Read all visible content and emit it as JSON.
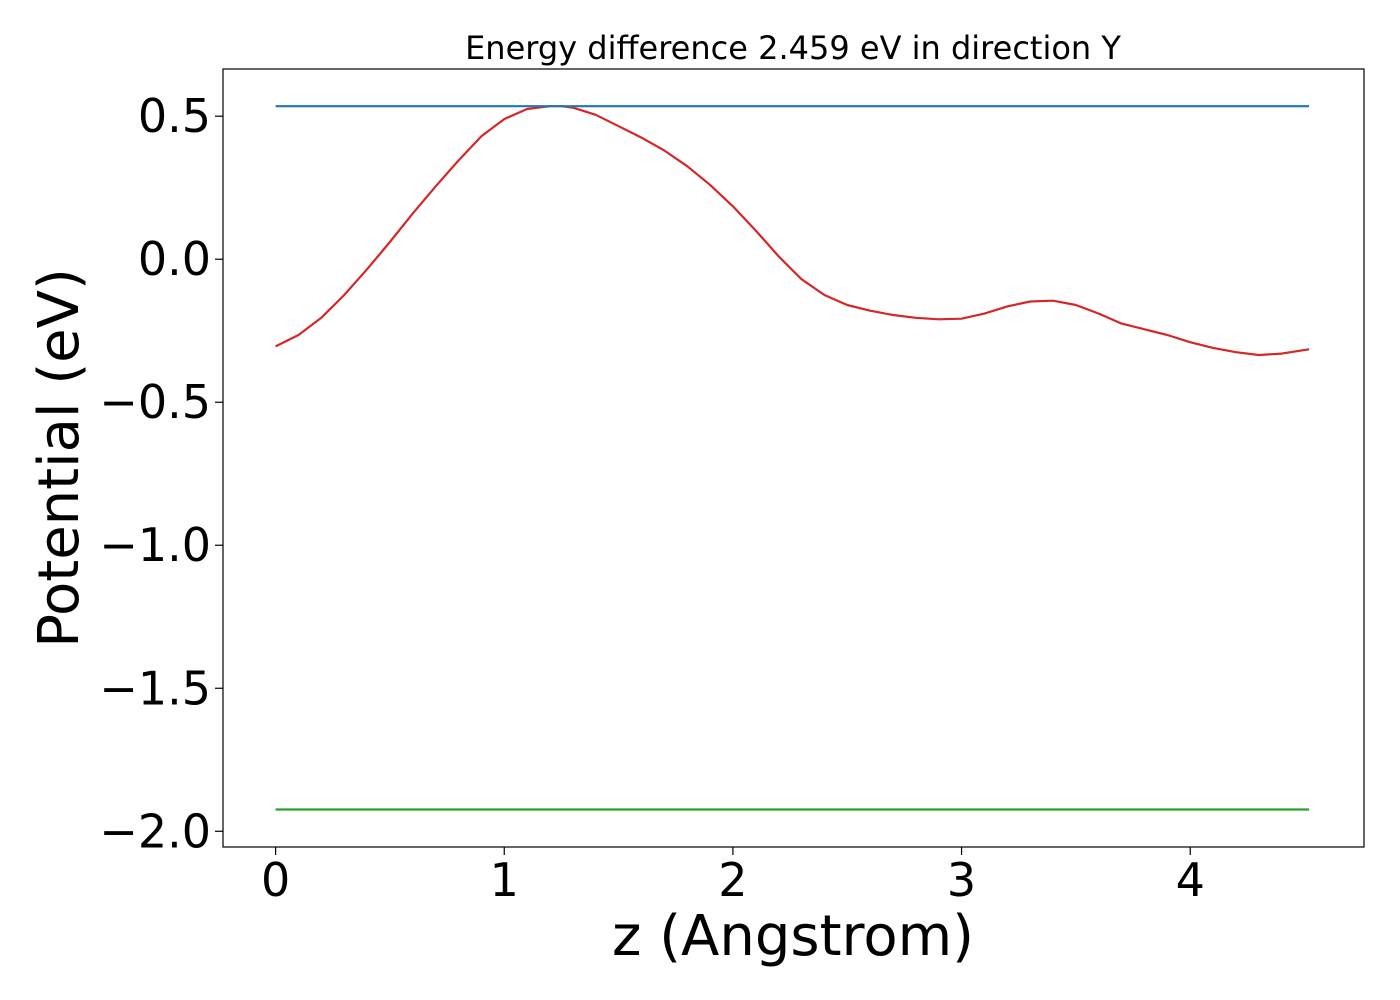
{
  "chart_data": {
    "type": "line",
    "title": "Energy difference 2.459 eV in direction Y",
    "xlabel": "z (Angstrom)",
    "ylabel": "Potential (eV)",
    "xlim": [
      -0.23,
      4.76
    ],
    "ylim": [
      -2.055,
      0.665
    ],
    "x_ticks": [
      0,
      1,
      2,
      3,
      4
    ],
    "y_ticks": [
      0.5,
      0.0,
      -0.5,
      -1.0,
      -1.5,
      -2.0
    ],
    "x_tick_labels": [
      "0",
      "1",
      "2",
      "3",
      "4"
    ],
    "y_tick_labels": [
      "0.5",
      "0.0",
      "−0.5",
      "−1.0",
      "−1.5",
      "−2.0"
    ],
    "grid": false,
    "series": [
      {
        "color": "#d62728",
        "x": [
          0.0,
          0.1,
          0.2,
          0.3,
          0.4,
          0.5,
          0.6,
          0.7,
          0.8,
          0.9,
          1.0,
          1.1,
          1.2,
          1.25,
          1.3,
          1.4,
          1.5,
          1.6,
          1.7,
          1.8,
          1.9,
          2.0,
          2.1,
          2.2,
          2.3,
          2.4,
          2.5,
          2.6,
          2.7,
          2.8,
          2.9,
          3.0,
          3.1,
          3.2,
          3.3,
          3.4,
          3.5,
          3.6,
          3.7,
          3.8,
          3.9,
          4.0,
          4.1,
          4.2,
          4.3,
          4.4,
          4.52
        ],
        "y": [
          -0.305,
          -0.265,
          -0.205,
          -0.125,
          -0.035,
          0.06,
          0.16,
          0.255,
          0.345,
          0.43,
          0.49,
          0.525,
          0.535,
          0.535,
          0.53,
          0.505,
          0.465,
          0.425,
          0.38,
          0.325,
          0.26,
          0.185,
          0.1,
          0.01,
          -0.07,
          -0.125,
          -0.16,
          -0.18,
          -0.195,
          -0.205,
          -0.21,
          -0.208,
          -0.19,
          -0.165,
          -0.148,
          -0.145,
          -0.16,
          -0.19,
          -0.225,
          -0.245,
          -0.265,
          -0.29,
          -0.31,
          -0.325,
          -0.335,
          -0.33,
          -0.315
        ]
      },
      {
        "color": "#1f77b4",
        "x": [
          0.0,
          4.52
        ],
        "y": [
          0.535,
          0.535
        ]
      },
      {
        "color": "#2ca02c",
        "x": [
          0.0,
          4.52
        ],
        "y": [
          -1.924,
          -1.924
        ]
      }
    ]
  }
}
